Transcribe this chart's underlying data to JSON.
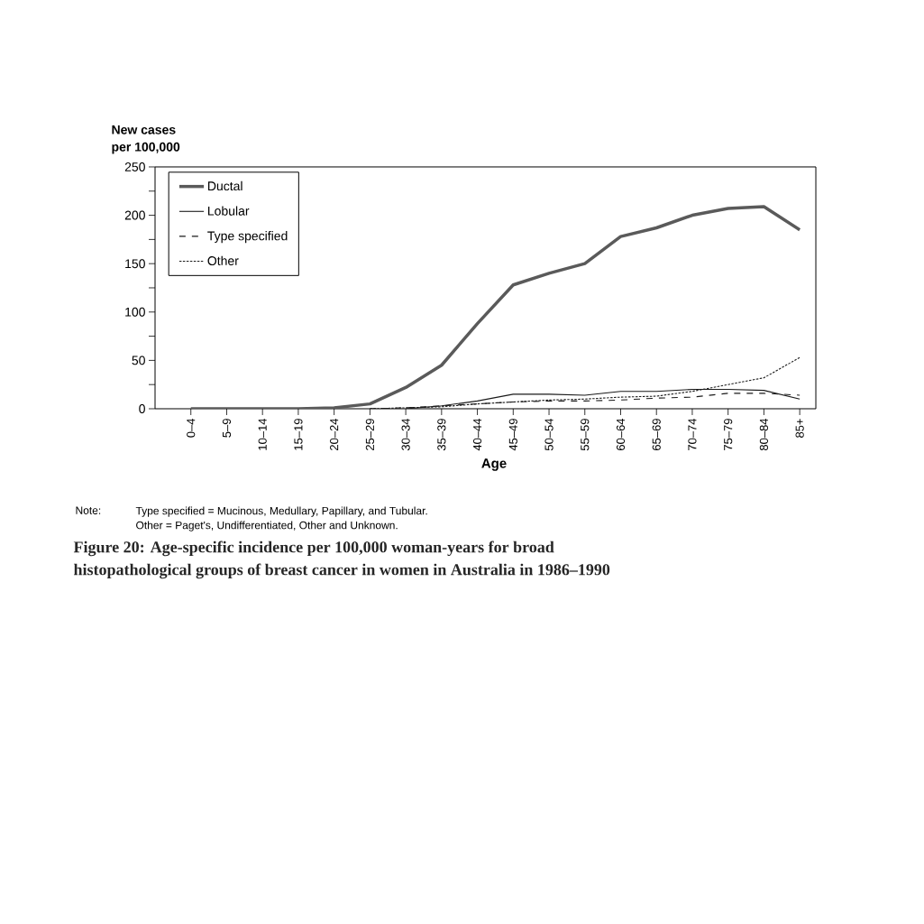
{
  "chart_data": {
    "type": "line",
    "title": "Figure 20: Age-specific incidence per 100,000 woman-years for broad histopathological groups of breast cancer in women in Australia in 1986–1990",
    "xlabel": "Age",
    "ylabel": "New cases per 100,000",
    "categories": [
      "0–4",
      "5–9",
      "10–14",
      "15–19",
      "20–24",
      "25–29",
      "30–34",
      "35–39",
      "40–44",
      "45–49",
      "50–54",
      "55–59",
      "60–64",
      "65–69",
      "70–74",
      "75–79",
      "80–84",
      "85+"
    ],
    "series": [
      {
        "name": "Ductal",
        "color": "#5a5a5a",
        "line_style": "solid",
        "values": [
          0,
          0,
          0,
          0,
          1,
          5,
          22,
          45,
          88,
          128,
          140,
          150,
          178,
          187,
          200,
          207,
          209,
          185
        ]
      },
      {
        "name": "Lobular",
        "color": "#1a1a1a",
        "line_style": "solid",
        "values": [
          null,
          null,
          null,
          null,
          null,
          null,
          0,
          3,
          8,
          15,
          15,
          14,
          18,
          18,
          20,
          20,
          19,
          10
        ]
      },
      {
        "name": "Type specified",
        "color": "#1a1a1a",
        "line_style": "dashed",
        "values": [
          null,
          null,
          null,
          null,
          null,
          0,
          1,
          3,
          5,
          7,
          8,
          8,
          9,
          11,
          12,
          16,
          16,
          14
        ]
      },
      {
        "name": "Other",
        "color": "#1a1a1a",
        "line_style": "dotted",
        "values": [
          null,
          null,
          null,
          null,
          null,
          0,
          1,
          2,
          5,
          7,
          9,
          10,
          12,
          13,
          18,
          25,
          32,
          53
        ]
      }
    ],
    "ylim": [
      0,
      250
    ],
    "yticks": [
      0,
      {
        "value": 25,
        "label": null
      },
      50,
      {
        "value": 75,
        "label": null
      },
      100,
      {
        "value": 125,
        "label": null
      },
      150,
      {
        "value": 175,
        "label": null
      },
      200,
      {
        "value": 225,
        "label": null
      },
      250
    ],
    "legend": "top left",
    "annotations": [
      "Note:",
      "Type specified = Mucinous, Medullary, Papillary, and Tubular.",
      "Other = Paget's, Undifferentiated, Other and Unknown."
    ]
  }
}
